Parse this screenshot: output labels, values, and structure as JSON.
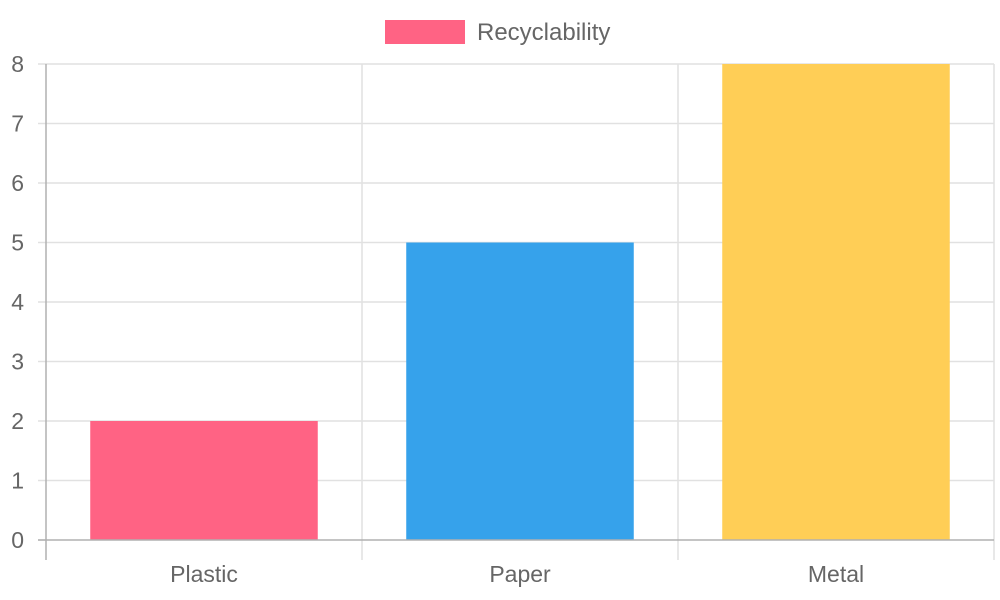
{
  "chart_data": {
    "type": "bar",
    "categories": [
      "Plastic",
      "Paper",
      "Metal"
    ],
    "series": [
      {
        "name": "Recyclability",
        "values": [
          2,
          5,
          8
        ],
        "colors": [
          "#ff6384",
          "#36a2eb",
          "#ffce56"
        ]
      }
    ],
    "ylim": [
      0,
      8
    ],
    "y_ticks": [
      0,
      1,
      2,
      3,
      4,
      5,
      6,
      7,
      8
    ],
    "grid": true,
    "legend_position": "top-center",
    "legend_color": "#ff6384",
    "axis_text_color": "#666666",
    "grid_color": "#e1e1e1",
    "axis_line_color": "#b0b0b0"
  }
}
